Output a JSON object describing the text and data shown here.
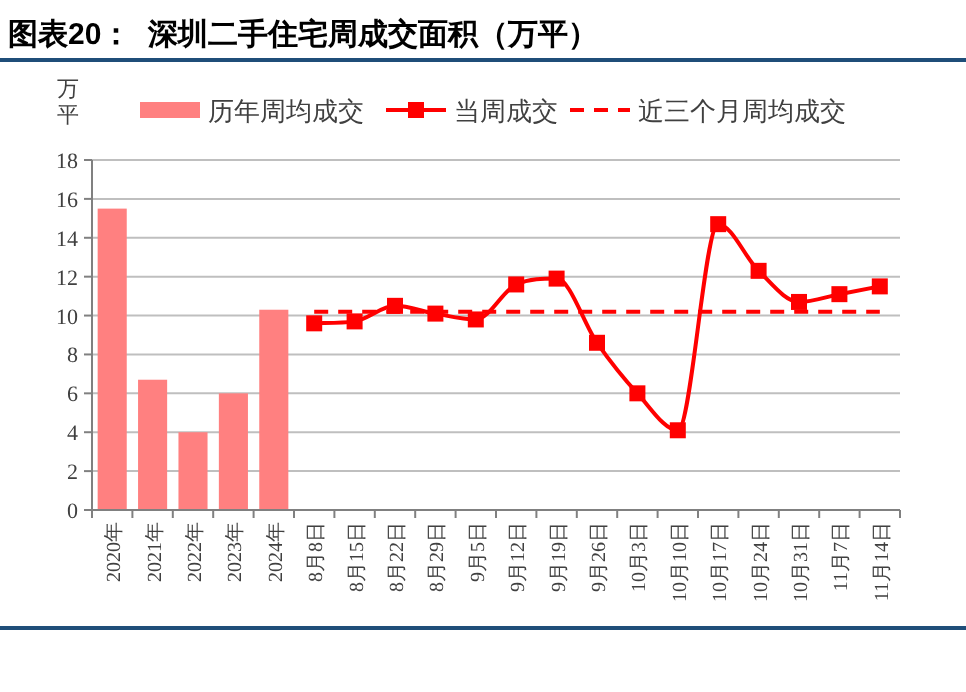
{
  "chart_data": {
    "type": "bar",
    "title": "图表20：  深圳二手住宅周成交面积（万平）",
    "ylabel": "万平",
    "categories": [
      "2020年",
      "2021年",
      "2022年",
      "2023年",
      "2024年",
      "8月8日",
      "8月15日",
      "8月22日",
      "8月29日",
      "9月5日",
      "9月12日",
      "9月19日",
      "9月26日",
      "10月3日",
      "10月10日",
      "10月17日",
      "10月24日",
      "10月31日",
      "11月7日",
      "11月14日"
    ],
    "series": [
      {
        "name": "历年周均成交",
        "color": "#ff8080",
        "values": [
          15.5,
          6.7,
          4.0,
          6.0,
          10.3,
          null,
          null,
          null,
          null,
          null,
          null,
          null,
          null,
          null,
          null,
          null,
          null,
          null,
          null,
          null
        ]
      },
      {
        "name": "当周成交",
        "type": "line",
        "color": "#ff0000",
        "marker": "square",
        "line_style": "solid",
        "values": [
          null,
          null,
          null,
          null,
          null,
          9.6,
          9.7,
          10.5,
          10.1,
          9.8,
          11.6,
          11.9,
          8.6,
          6.0,
          4.1,
          14.7,
          12.3,
          10.7,
          11.1,
          11.5
        ]
      },
      {
        "name": "近三个月周均成交",
        "type": "line",
        "color": "#ff0000",
        "marker": "none",
        "line_style": "dashed",
        "values": [
          null,
          null,
          null,
          null,
          null,
          10.2,
          10.2,
          10.2,
          10.2,
          10.2,
          10.2,
          10.2,
          10.2,
          10.2,
          10.2,
          10.2,
          10.2,
          10.2,
          10.2,
          10.2
        ]
      }
    ],
    "ylim": [
      0,
      18
    ],
    "yticks": [
      0,
      2,
      4,
      6,
      8,
      10,
      12,
      14,
      16,
      18
    ],
    "grid": "y",
    "legend": "top"
  }
}
